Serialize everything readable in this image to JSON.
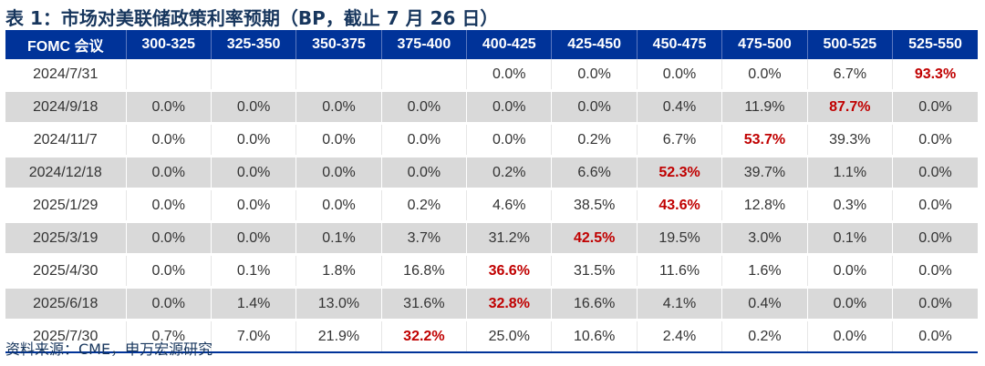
{
  "title": "表 1：市场对美联储政策利率预期（BP，截止 7 月 26 日）",
  "table": {
    "headers": [
      "FOMC 会议",
      "300-325",
      "325-350",
      "350-375",
      "375-400",
      "400-425",
      "425-450",
      "450-475",
      "475-500",
      "500-525",
      "525-550"
    ],
    "rows": [
      {
        "date": "2024/7/31",
        "values": [
          "",
          "",
          "",
          "",
          "0.0%",
          "0.0%",
          "0.0%",
          "0.0%",
          "6.7%",
          "93.3%"
        ],
        "max_index": 9
      },
      {
        "date": "2024/9/18",
        "values": [
          "0.0%",
          "0.0%",
          "0.0%",
          "0.0%",
          "0.0%",
          "0.0%",
          "0.4%",
          "11.9%",
          "87.7%",
          "0.0%"
        ],
        "max_index": 8
      },
      {
        "date": "2024/11/7",
        "values": [
          "0.0%",
          "0.0%",
          "0.0%",
          "0.0%",
          "0.0%",
          "0.2%",
          "6.7%",
          "53.7%",
          "39.3%",
          "0.0%"
        ],
        "max_index": 7
      },
      {
        "date": "2024/12/18",
        "values": [
          "0.0%",
          "0.0%",
          "0.0%",
          "0.0%",
          "0.2%",
          "6.6%",
          "52.3%",
          "39.7%",
          "1.1%",
          "0.0%"
        ],
        "max_index": 6
      },
      {
        "date": "2025/1/29",
        "values": [
          "0.0%",
          "0.0%",
          "0.0%",
          "0.2%",
          "4.6%",
          "38.5%",
          "43.6%",
          "12.8%",
          "0.3%",
          "0.0%"
        ],
        "max_index": 6
      },
      {
        "date": "2025/3/19",
        "values": [
          "0.0%",
          "0.0%",
          "0.1%",
          "3.7%",
          "31.2%",
          "42.5%",
          "19.5%",
          "3.0%",
          "0.1%",
          "0.0%"
        ],
        "max_index": 5
      },
      {
        "date": "2025/4/30",
        "values": [
          "0.0%",
          "0.1%",
          "1.8%",
          "16.8%",
          "36.6%",
          "31.5%",
          "11.6%",
          "1.6%",
          "0.0%",
          "0.0%"
        ],
        "max_index": 4
      },
      {
        "date": "2025/6/18",
        "values": [
          "0.0%",
          "1.4%",
          "13.0%",
          "31.6%",
          "32.8%",
          "16.6%",
          "4.1%",
          "0.4%",
          "0.0%",
          "0.0%"
        ],
        "max_index": 4
      },
      {
        "date": "2025/7/30",
        "values": [
          "0.7%",
          "7.0%",
          "21.9%",
          "32.2%",
          "25.0%",
          "10.6%",
          "2.4%",
          "0.2%",
          "0.0%",
          "0.0%"
        ],
        "max_index": 3
      }
    ]
  },
  "source": "资料来源：CME，申万宏源研究",
  "colors": {
    "header_bg": "#003399",
    "highlight": "#c00000",
    "stripe": "#d9d9d9"
  }
}
